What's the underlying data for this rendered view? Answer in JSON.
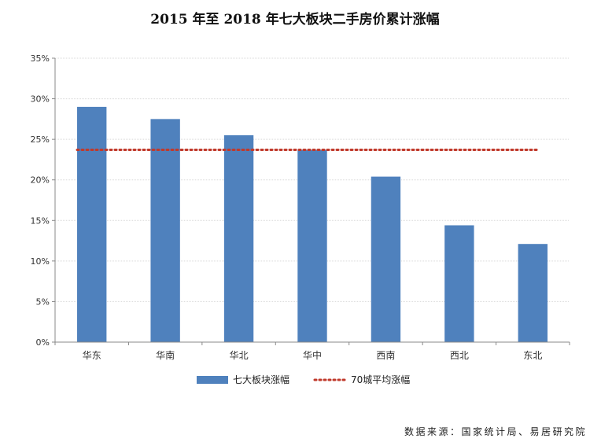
{
  "chart_data": {
    "type": "bar",
    "title": "2015 年至 2018 年七大板块二手房价累计涨幅",
    "categories": [
      "华东",
      "华南",
      "华北",
      "华中",
      "西南",
      "西北",
      "东北"
    ],
    "series": [
      {
        "name": "七大板块涨幅",
        "values": [
          29.0,
          27.5,
          25.5,
          23.7,
          20.4,
          14.4,
          12.1
        ],
        "color": "#4f81bd"
      }
    ],
    "reference_line": {
      "name": "70城平均涨幅",
      "value": 23.7,
      "color": "#c0392b",
      "style": "dotted"
    },
    "ylim": [
      0,
      35
    ],
    "yticks": [
      0,
      5,
      10,
      15,
      20,
      25,
      30,
      35
    ],
    "ytick_labels": [
      "0%",
      "5%",
      "10%",
      "15%",
      "20%",
      "25%",
      "30%",
      "35%"
    ],
    "grid": true,
    "legend_position": "bottom-center",
    "xlabel": "",
    "ylabel": ""
  },
  "source_note": "数据来源：国家统计局、易居研究院"
}
